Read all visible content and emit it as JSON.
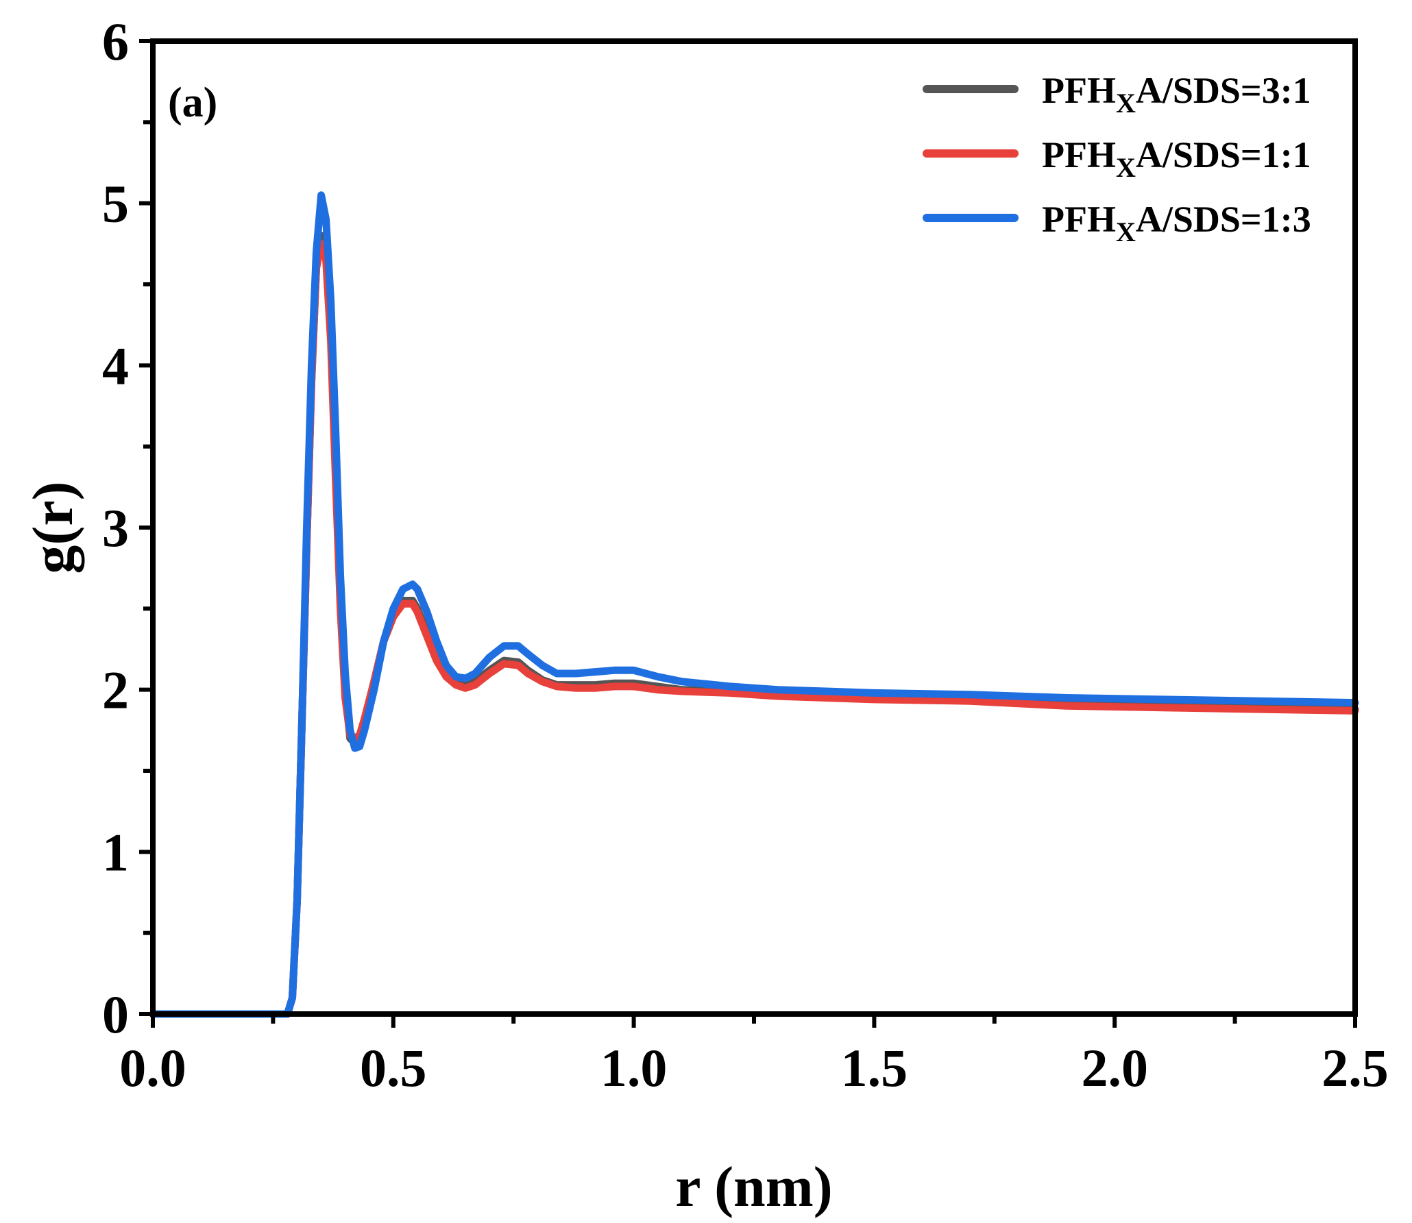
{
  "chart_data": {
    "type": "line",
    "title": "",
    "panel_label": "(a)",
    "xlabel": "r (nm)",
    "ylabel": "g(r)",
    "xlim": [
      0.0,
      2.5
    ],
    "ylim": [
      0,
      6
    ],
    "xticks": [
      0.0,
      0.5,
      1.0,
      1.5,
      2.0,
      2.5
    ],
    "xtick_labels": [
      "0.0",
      "0.5",
      "1.0",
      "1.5",
      "2.0",
      "2.5"
    ],
    "yticks": [
      0,
      1,
      2,
      3,
      4,
      5,
      6
    ],
    "ytick_labels": [
      "0",
      "1",
      "2",
      "3",
      "4",
      "5",
      "6"
    ],
    "grid": false,
    "legend_position": "top-right",
    "series": [
      {
        "name": "PFHXA/SDS=3:1",
        "name_base": "PFH",
        "name_sub": "X",
        "name_rest": "A/SDS=3:1",
        "color": "#555555",
        "x": [
          0.0,
          0.28,
          0.29,
          0.3,
          0.31,
          0.32,
          0.33,
          0.34,
          0.35,
          0.36,
          0.37,
          0.38,
          0.39,
          0.4,
          0.41,
          0.42,
          0.43,
          0.44,
          0.46,
          0.48,
          0.5,
          0.52,
          0.54,
          0.55,
          0.57,
          0.59,
          0.61,
          0.63,
          0.65,
          0.67,
          0.7,
          0.73,
          0.76,
          0.78,
          0.81,
          0.84,
          0.88,
          0.92,
          0.96,
          1.0,
          1.05,
          1.1,
          1.2,
          1.3,
          1.4,
          1.5,
          1.7,
          1.9,
          2.1,
          2.3,
          2.5
        ],
        "y": [
          0.0,
          0.0,
          0.1,
          0.7,
          1.8,
          2.9,
          3.9,
          4.6,
          4.8,
          4.7,
          4.2,
          3.4,
          2.6,
          2.0,
          1.7,
          1.67,
          1.7,
          1.8,
          2.05,
          2.3,
          2.45,
          2.55,
          2.55,
          2.5,
          2.35,
          2.2,
          2.1,
          2.05,
          2.03,
          2.05,
          2.12,
          2.18,
          2.17,
          2.12,
          2.06,
          2.03,
          2.03,
          2.03,
          2.04,
          2.04,
          2.02,
          2.0,
          1.99,
          1.97,
          1.96,
          1.95,
          1.94,
          1.92,
          1.91,
          1.9,
          1.88
        ]
      },
      {
        "name": "PFHXA/SDS=1:1",
        "name_base": "PFH",
        "name_sub": "X",
        "name_rest": "A/SDS=1:1",
        "color": "#e8403a",
        "x": [
          0.0,
          0.28,
          0.29,
          0.3,
          0.31,
          0.32,
          0.33,
          0.34,
          0.35,
          0.36,
          0.37,
          0.38,
          0.39,
          0.4,
          0.41,
          0.42,
          0.43,
          0.44,
          0.46,
          0.48,
          0.5,
          0.52,
          0.54,
          0.55,
          0.57,
          0.59,
          0.61,
          0.63,
          0.65,
          0.67,
          0.7,
          0.73,
          0.76,
          0.78,
          0.81,
          0.84,
          0.88,
          0.92,
          0.96,
          1.0,
          1.05,
          1.1,
          1.2,
          1.3,
          1.4,
          1.5,
          1.7,
          1.9,
          2.1,
          2.3,
          2.5
        ],
        "y": [
          0.0,
          0.0,
          0.1,
          0.7,
          1.8,
          2.9,
          3.9,
          4.6,
          4.75,
          4.65,
          4.15,
          3.3,
          2.5,
          1.95,
          1.72,
          1.7,
          1.72,
          1.82,
          2.05,
          2.3,
          2.45,
          2.53,
          2.53,
          2.48,
          2.33,
          2.18,
          2.08,
          2.03,
          2.01,
          2.03,
          2.1,
          2.16,
          2.15,
          2.1,
          2.05,
          2.02,
          2.01,
          2.01,
          2.02,
          2.02,
          2.0,
          1.99,
          1.98,
          1.96,
          1.95,
          1.94,
          1.93,
          1.9,
          1.89,
          1.88,
          1.87
        ]
      },
      {
        "name": "PFHXA/SDS=1:3",
        "name_base": "PFH",
        "name_sub": "X",
        "name_rest": "A/SDS=1:3",
        "color": "#1f6fe0",
        "x": [
          0.0,
          0.28,
          0.29,
          0.3,
          0.31,
          0.32,
          0.33,
          0.34,
          0.35,
          0.36,
          0.37,
          0.38,
          0.39,
          0.4,
          0.41,
          0.42,
          0.43,
          0.44,
          0.46,
          0.48,
          0.5,
          0.52,
          0.54,
          0.55,
          0.57,
          0.59,
          0.61,
          0.63,
          0.65,
          0.67,
          0.7,
          0.73,
          0.76,
          0.78,
          0.81,
          0.84,
          0.88,
          0.92,
          0.96,
          1.0,
          1.05,
          1.1,
          1.2,
          1.3,
          1.4,
          1.5,
          1.7,
          1.9,
          2.1,
          2.3,
          2.5
        ],
        "y": [
          0.0,
          0.0,
          0.1,
          0.7,
          1.8,
          3.0,
          4.0,
          4.7,
          5.05,
          4.9,
          4.4,
          3.6,
          2.7,
          2.1,
          1.75,
          1.64,
          1.65,
          1.75,
          2.0,
          2.3,
          2.5,
          2.62,
          2.65,
          2.62,
          2.48,
          2.3,
          2.15,
          2.08,
          2.07,
          2.1,
          2.2,
          2.27,
          2.27,
          2.22,
          2.15,
          2.1,
          2.1,
          2.11,
          2.12,
          2.12,
          2.08,
          2.05,
          2.02,
          2.0,
          1.99,
          1.98,
          1.97,
          1.95,
          1.94,
          1.93,
          1.92
        ]
      }
    ]
  }
}
